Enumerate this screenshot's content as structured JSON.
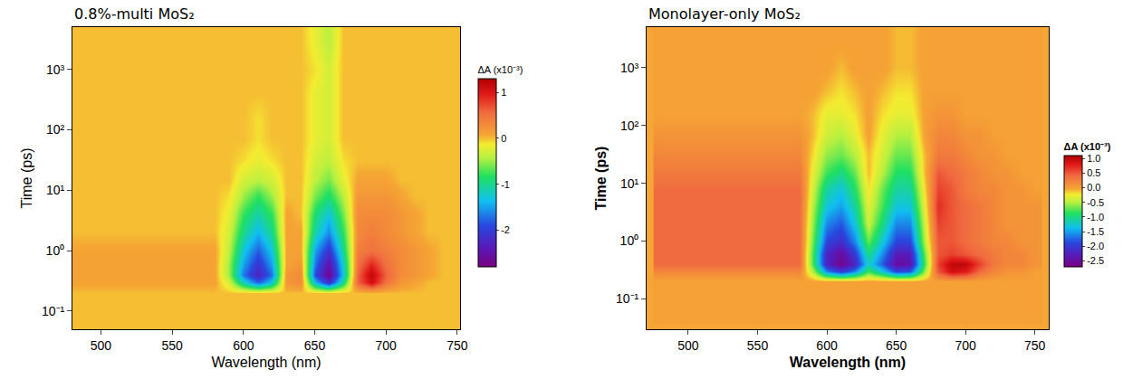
{
  "chart_data": [
    {
      "type": "heatmap",
      "title": "0.8%-multi MoS₂",
      "x_label": "Wavelength (nm)",
      "y_label": "Time (ps)",
      "log": "y",
      "x": [
        480,
        490,
        500,
        510,
        520,
        530,
        540,
        550,
        560,
        570,
        580,
        590,
        600,
        610,
        620,
        630,
        640,
        650,
        660,
        670,
        680,
        690,
        700,
        710,
        720,
        730,
        740,
        750
      ],
      "y": [
        0.05,
        0.1,
        0.2,
        0.3,
        0.4,
        0.6,
        1,
        2,
        4,
        8,
        15,
        30,
        70,
        150,
        400,
        1000,
        3000,
        5000
      ],
      "z": [
        [
          0,
          0,
          0,
          0,
          0,
          0,
          0,
          0,
          0,
          0,
          0,
          0,
          0,
          0,
          0,
          0,
          0,
          0,
          0,
          0,
          0,
          0,
          0,
          0,
          0,
          0,
          0,
          0
        ],
        [
          0,
          0,
          0,
          0,
          0,
          0,
          0,
          0,
          0,
          0,
          0,
          0,
          0,
          0,
          0,
          0,
          0,
          0,
          0,
          0,
          0,
          0,
          0,
          0,
          0,
          0,
          0,
          0
        ],
        [
          0,
          0,
          0,
          0,
          0,
          0,
          0,
          0,
          0,
          0,
          0,
          0,
          0,
          0,
          0,
          0,
          0,
          0,
          0,
          0,
          0,
          0,
          0,
          0,
          0,
          0,
          0,
          0
        ],
        [
          0.1,
          0.1,
          0.1,
          0.1,
          0.1,
          0.1,
          0.1,
          0.1,
          0.1,
          0.1,
          0.1,
          -0.3,
          -1.2,
          -1.8,
          -1.3,
          0.2,
          0.3,
          -1.4,
          -2.2,
          -1.0,
          0.6,
          1.1,
          0.5,
          0.2,
          0.1,
          0,
          0,
          0
        ],
        [
          0.1,
          0.1,
          0.1,
          0.1,
          0.1,
          0.1,
          0.1,
          0.1,
          0.1,
          0.1,
          0.1,
          -0.5,
          -1.7,
          -2.3,
          -1.7,
          0.2,
          0.3,
          -1.9,
          -2.7,
          -1.3,
          0.6,
          1.2,
          0.6,
          0.3,
          0.2,
          0.1,
          0,
          0
        ],
        [
          0.1,
          0.1,
          0.1,
          0.1,
          0.1,
          0.1,
          0.1,
          0.1,
          0.1,
          0.1,
          0.1,
          -0.5,
          -1.5,
          -2.1,
          -1.5,
          0.1,
          0.2,
          -1.7,
          -2.5,
          -1.2,
          0.5,
          0.9,
          0.5,
          0.3,
          0.2,
          0.1,
          0,
          0
        ],
        [
          0.1,
          0.1,
          0.1,
          0.1,
          0.1,
          0.1,
          0.1,
          0.1,
          0.1,
          0.1,
          0.1,
          -0.4,
          -1.3,
          -1.8,
          -1.3,
          0.1,
          0.1,
          -1.5,
          -2.1,
          -1.0,
          0.4,
          0.5,
          0.4,
          0.3,
          0.2,
          0.1,
          0,
          0
        ],
        [
          0,
          0,
          0,
          0,
          0,
          0,
          0,
          0,
          0,
          0,
          0,
          -0.3,
          -1.0,
          -1.4,
          -1.0,
          0.1,
          0.1,
          -1.1,
          -1.6,
          -0.8,
          0.3,
          0.4,
          0.3,
          0.2,
          0.1,
          0,
          0,
          0
        ],
        [
          0,
          0,
          0,
          0,
          0,
          0,
          0,
          0,
          0,
          0,
          0,
          -0.2,
          -0.8,
          -1.1,
          -0.8,
          0.1,
          0,
          -0.9,
          -1.3,
          -0.6,
          0.3,
          0.3,
          0.3,
          0.2,
          0.1,
          0,
          0,
          0
        ],
        [
          0,
          0,
          0,
          0,
          0,
          0,
          0,
          0,
          0,
          0,
          0,
          -0.1,
          -0.5,
          -0.8,
          -0.5,
          0,
          0,
          -0.6,
          -0.9,
          -0.4,
          0.2,
          0.2,
          0.2,
          0.1,
          0,
          0,
          0,
          0
        ],
        [
          0,
          0,
          0,
          0,
          0,
          0,
          0,
          0,
          0,
          0,
          0,
          0,
          -0.3,
          -0.4,
          -0.3,
          0,
          0,
          -0.4,
          -0.6,
          -0.2,
          0.1,
          0.1,
          0.1,
          0,
          0,
          0,
          0,
          0
        ],
        [
          0,
          0,
          0,
          0,
          0,
          0,
          0,
          0,
          0,
          0,
          0,
          0,
          -0.1,
          -0.2,
          -0.1,
          0,
          0,
          -0.3,
          -0.4,
          -0.1,
          0,
          0,
          0,
          0,
          0,
          0,
          0,
          0
        ],
        [
          0,
          0,
          0,
          0,
          0,
          0,
          0,
          0,
          0,
          0,
          0,
          0,
          0,
          -0.1,
          0,
          0,
          0,
          -0.2,
          -0.3,
          0,
          0,
          0,
          0,
          0,
          0,
          0,
          0,
          0
        ],
        [
          0,
          0,
          0,
          0,
          0,
          0,
          0,
          0,
          0,
          0,
          0,
          0,
          0,
          -0.1,
          0,
          0,
          0,
          -0.2,
          -0.3,
          0,
          0,
          0,
          0,
          0,
          0,
          0,
          0,
          0
        ],
        [
          0,
          0,
          0,
          0,
          0,
          0,
          0,
          0,
          0,
          0,
          0,
          0,
          0,
          0,
          0,
          0,
          0,
          -0.2,
          -0.3,
          0,
          0,
          0,
          0,
          0,
          0,
          0,
          0,
          0
        ],
        [
          0,
          0,
          0,
          0,
          0,
          0,
          0,
          0,
          0,
          0,
          0,
          0,
          0,
          0,
          0,
          0,
          0,
          -0.1,
          -0.3,
          0,
          0,
          0,
          0,
          0,
          0,
          0,
          0,
          0
        ],
        [
          0,
          0,
          0,
          0,
          0,
          0,
          0,
          0,
          0,
          0,
          0,
          0,
          0,
          0,
          0,
          0,
          0,
          -0.2,
          -0.4,
          0,
          0,
          0,
          0,
          0,
          0,
          0,
          0,
          0
        ],
        [
          0,
          0,
          0,
          0,
          0,
          0,
          0,
          0,
          0,
          0,
          0,
          0,
          0,
          0,
          0,
          0,
          0,
          -0.2,
          -0.4,
          0,
          0,
          0,
          0,
          0,
          0,
          0,
          0,
          0
        ]
      ],
      "xlim": [
        480,
        752
      ],
      "xticks": [
        500,
        550,
        600,
        650,
        700,
        750
      ],
      "ylim": [
        0.05,
        5000
      ],
      "yticks": [
        {
          "value": 0.1,
          "label": "10⁻¹"
        },
        {
          "value": 1,
          "label": "10⁰"
        },
        {
          "value": 10,
          "label": "10¹"
        },
        {
          "value": 100,
          "label": "10²"
        },
        {
          "value": 1000,
          "label": "10³"
        }
      ],
      "colorbar_title": "ΔA (x10⁻³)",
      "zlim": [
        -2.8,
        1.3
      ],
      "zticks": [
        -2,
        -1,
        0,
        1
      ]
    },
    {
      "type": "heatmap",
      "title": "Monolayer-only MoS₂",
      "x_label": "Wavelength (nm)",
      "y_label": "Time (ps)",
      "log": "y",
      "x": [
        480,
        490,
        500,
        510,
        520,
        530,
        540,
        550,
        560,
        570,
        580,
        590,
        600,
        610,
        620,
        630,
        640,
        650,
        660,
        670,
        680,
        690,
        700,
        710,
        720,
        730,
        740,
        750
      ],
      "y": [
        0.05,
        0.1,
        0.2,
        0.3,
        0.4,
        0.6,
        1,
        2,
        4,
        8,
        15,
        30,
        70,
        150,
        400,
        1000,
        3000,
        5000
      ],
      "z": [
        [
          0,
          0,
          0,
          0,
          0,
          0,
          0,
          0,
          0,
          0,
          0,
          0,
          0,
          0,
          0,
          0,
          0,
          0,
          0,
          0,
          0,
          0,
          0,
          0,
          0,
          0,
          0,
          0
        ],
        [
          0,
          0,
          0,
          0,
          0,
          0,
          0,
          0,
          0,
          0,
          0,
          0,
          0,
          0,
          0,
          0,
          0,
          0,
          0,
          0,
          0,
          0,
          0,
          0,
          0,
          0,
          0,
          0
        ],
        [
          0,
          0,
          0,
          0,
          0,
          0,
          0,
          0,
          0,
          0,
          0,
          0,
          0,
          0,
          0,
          0,
          0,
          0,
          0,
          0,
          0,
          0,
          0,
          0,
          0,
          0,
          0,
          0
        ],
        [
          0.2,
          0.2,
          0.2,
          0.2,
          0.2,
          0.2,
          0.2,
          0.2,
          0.2,
          0.2,
          0.2,
          -0.5,
          -1.6,
          -2.0,
          -1.6,
          -0.8,
          -1.3,
          -1.9,
          -1.8,
          -0.6,
          0.5,
          0.9,
          0.8,
          0.4,
          0.2,
          0.1,
          0.1,
          0
        ],
        [
          0.4,
          0.4,
          0.4,
          0.4,
          0.4,
          0.4,
          0.4,
          0.4,
          0.4,
          0.4,
          0.4,
          -0.8,
          -2.2,
          -2.6,
          -2.2,
          -1.2,
          -1.8,
          -2.5,
          -2.4,
          -0.8,
          0.6,
          1.0,
          1.0,
          0.6,
          0.3,
          0.2,
          0.2,
          0.1
        ],
        [
          0.4,
          0.4,
          0.4,
          0.4,
          0.4,
          0.4,
          0.4,
          0.4,
          0.4,
          0.4,
          0.4,
          -0.8,
          -2.2,
          -2.5,
          -2.0,
          -1.0,
          -1.6,
          -2.3,
          -2.3,
          -0.7,
          0.5,
          0.6,
          0.5,
          0.4,
          0.3,
          0.2,
          0.2,
          0.1
        ],
        [
          0.4,
          0.4,
          0.4,
          0.4,
          0.4,
          0.4,
          0.4,
          0.4,
          0.4,
          0.4,
          0.4,
          -0.7,
          -1.9,
          -2.1,
          -1.6,
          -0.7,
          -1.3,
          -1.9,
          -1.9,
          -0.5,
          0.5,
          0.5,
          0.4,
          0.3,
          0.2,
          0.2,
          0.1,
          0.1
        ],
        [
          0.4,
          0.4,
          0.4,
          0.4,
          0.4,
          0.4,
          0.4,
          0.4,
          0.4,
          0.4,
          0.4,
          -0.6,
          -1.6,
          -1.8,
          -1.3,
          -0.4,
          -1.0,
          -1.6,
          -1.6,
          -0.4,
          0.6,
          0.5,
          0.4,
          0.3,
          0.2,
          0.1,
          0.1,
          0.1
        ],
        [
          0.4,
          0.4,
          0.4,
          0.4,
          0.4,
          0.4,
          0.4,
          0.4,
          0.4,
          0.4,
          0.4,
          -0.5,
          -1.3,
          -1.5,
          -1.1,
          -0.3,
          -0.8,
          -1.3,
          -1.3,
          -0.3,
          0.7,
          0.5,
          0.4,
          0.3,
          0.2,
          0.1,
          0.1,
          0.1
        ],
        [
          0.4,
          0.4,
          0.4,
          0.4,
          0.4,
          0.4,
          0.4,
          0.4,
          0.4,
          0.4,
          0.4,
          -0.4,
          -1.1,
          -1.3,
          -0.9,
          -0.2,
          -0.7,
          -1.1,
          -1.1,
          -0.2,
          0.6,
          0.5,
          0.3,
          0.2,
          0.2,
          0.1,
          0.1,
          0
        ],
        [
          0.3,
          0.3,
          0.3,
          0.3,
          0.3,
          0.3,
          0.3,
          0.3,
          0.3,
          0.3,
          0.3,
          -0.3,
          -0.8,
          -1.0,
          -0.7,
          -0.1,
          -0.5,
          -0.9,
          -0.9,
          -0.1,
          0.5,
          0.4,
          0.3,
          0.2,
          0.1,
          0.1,
          0,
          0
        ],
        [
          0.2,
          0.2,
          0.2,
          0.2,
          0.2,
          0.2,
          0.2,
          0.2,
          0.2,
          0.2,
          0.2,
          -0.2,
          -0.6,
          -0.7,
          -0.5,
          -0.1,
          -0.4,
          -0.7,
          -0.7,
          -0.1,
          0.3,
          0.3,
          0.2,
          0.1,
          0.1,
          0,
          0,
          0
        ],
        [
          0.1,
          0.1,
          0.1,
          0.1,
          0.1,
          0.1,
          0.1,
          0.1,
          0.1,
          0.1,
          0.1,
          -0.1,
          -0.4,
          -0.5,
          -0.3,
          0,
          -0.3,
          -0.5,
          -0.5,
          0,
          0.2,
          0.2,
          0.1,
          0.1,
          0,
          0,
          0,
          0
        ],
        [
          0,
          0,
          0,
          0,
          0,
          0,
          0,
          0,
          0,
          0,
          0,
          -0.1,
          -0.3,
          -0.3,
          -0.2,
          0,
          -0.2,
          -0.3,
          -0.3,
          0,
          0.1,
          0.1,
          0,
          0,
          0,
          0,
          0,
          0
        ],
        [
          0,
          0,
          0,
          0,
          0,
          0,
          0,
          0,
          0,
          0,
          0,
          0,
          -0.1,
          -0.2,
          -0.1,
          0,
          -0.1,
          -0.2,
          -0.2,
          0,
          0,
          0,
          0,
          0,
          0,
          0,
          0,
          0
        ],
        [
          0,
          0,
          0,
          0,
          0,
          0,
          0,
          0,
          0,
          0,
          0,
          0,
          0,
          -0.1,
          0,
          0,
          0,
          -0.1,
          -0.1,
          0,
          0,
          0,
          0,
          0,
          0,
          0,
          0,
          0
        ],
        [
          0,
          0,
          0,
          0,
          0,
          0,
          0,
          0,
          0,
          0,
          0,
          0,
          0,
          0,
          0,
          0,
          0,
          -0.1,
          -0.1,
          0,
          0,
          0,
          0,
          0,
          0,
          0,
          0,
          0
        ],
        [
          0,
          0,
          0,
          0,
          0,
          0,
          0,
          0,
          0,
          0,
          0,
          0,
          0,
          0,
          0,
          0,
          0,
          -0.1,
          -0.1,
          0,
          0,
          0,
          0,
          0,
          0,
          0,
          0,
          0
        ]
      ],
      "xlim": [
        470,
        760
      ],
      "xticks": [
        500,
        550,
        600,
        650,
        700,
        750
      ],
      "ylim": [
        0.03,
        5000
      ],
      "yticks": [
        {
          "value": 0.1,
          "label": "10⁻¹"
        },
        {
          "value": 1,
          "label": "10⁰"
        },
        {
          "value": 10,
          "label": "10¹"
        },
        {
          "value": 100,
          "label": "10²"
        },
        {
          "value": 1000,
          "label": "10³"
        }
      ],
      "colorbar_title": "ΔA (x10⁻³)",
      "zlim": [
        -2.7,
        1.1
      ],
      "zticks": [
        -2.5,
        {
          "value": -2,
          "label": "-2.0"
        },
        -1.5,
        {
          "value": -1,
          "label": "-1.0"
        },
        -0.5,
        {
          "value": 0,
          "label": "0.0"
        },
        0.5,
        {
          "value": 1,
          "label": "1.0"
        }
      ]
    }
  ]
}
